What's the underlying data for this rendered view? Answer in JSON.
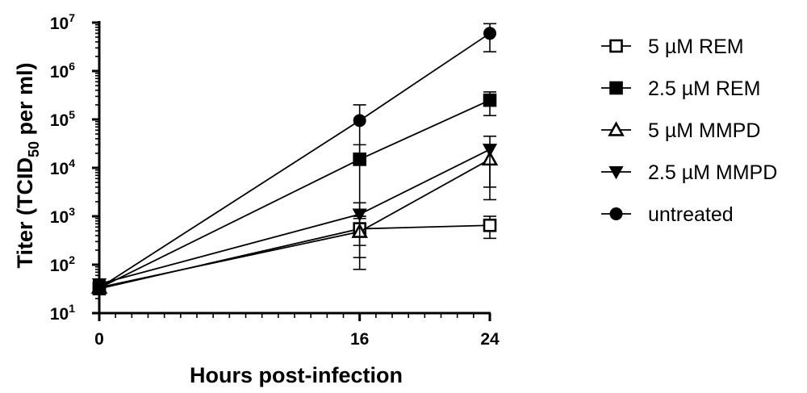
{
  "chart_data": {
    "type": "line",
    "xlabel": "Hours post-infection",
    "ylabel": {
      "prefix": "Titer (TCID",
      "subscript": "50",
      "suffix": " per ml)"
    },
    "y_scale": "log10",
    "xlim": [
      0,
      24
    ],
    "ylim": [
      10,
      10000000
    ],
    "x_ticks": [
      0,
      16,
      24
    ],
    "y_ticks": [
      {
        "base": "10",
        "exp": "1",
        "value": 10
      },
      {
        "base": "10",
        "exp": "2",
        "value": 100
      },
      {
        "base": "10",
        "exp": "3",
        "value": 1000
      },
      {
        "base": "10",
        "exp": "4",
        "value": 10000
      },
      {
        "base": "10",
        "exp": "5",
        "value": 100000
      },
      {
        "base": "10",
        "exp": "6",
        "value": 1000000
      },
      {
        "base": "10",
        "exp": "7",
        "value": 10000000
      }
    ],
    "legend_position": "right",
    "series": [
      {
        "name": "5 µM REM",
        "marker": "square-open",
        "points": [
          {
            "x": 0,
            "y": 32,
            "err_low": 27,
            "err_high": 38
          },
          {
            "x": 16,
            "y": 550,
            "err_low": 80,
            "err_high": 1000
          },
          {
            "x": 24,
            "y": 650,
            "err_low": 350,
            "err_high": 1000
          }
        ]
      },
      {
        "name": "2.5 µM REM",
        "marker": "square-filled",
        "points": [
          {
            "x": 0,
            "y": 33,
            "err_low": 28,
            "err_high": 39
          },
          {
            "x": 16,
            "y": 15000,
            "err_low": 1000,
            "err_high": 30000
          },
          {
            "x": 24,
            "y": 250000,
            "err_low": 120000,
            "err_high": 370000
          }
        ]
      },
      {
        "name": "5 µM MMPD",
        "marker": "triangle-up-open",
        "points": [
          {
            "x": 0,
            "y": 34,
            "err_low": 29,
            "err_high": 40
          },
          {
            "x": 16,
            "y": 480,
            "err_low": 140,
            "err_high": 900
          },
          {
            "x": 24,
            "y": 15000,
            "err_low": 2200,
            "err_high": 30000
          }
        ]
      },
      {
        "name": "2.5 µM MMPD",
        "marker": "triangle-down-filled",
        "points": [
          {
            "x": 0,
            "y": 40,
            "err_low": 34,
            "err_high": 47
          },
          {
            "x": 16,
            "y": 1100,
            "err_low": 250,
            "err_high": 1900
          },
          {
            "x": 24,
            "y": 24000,
            "err_low": 4000,
            "err_high": 45000
          }
        ]
      },
      {
        "name": "untreated",
        "marker": "circle-filled",
        "points": [
          {
            "x": 0,
            "y": 33,
            "err_low": 28,
            "err_high": 39
          },
          {
            "x": 16,
            "y": 95000,
            "err_low": 20000,
            "err_high": 200000
          },
          {
            "x": 24,
            "y": 6000000,
            "err_low": 2500000,
            "err_high": 9500000
          }
        ]
      }
    ]
  }
}
